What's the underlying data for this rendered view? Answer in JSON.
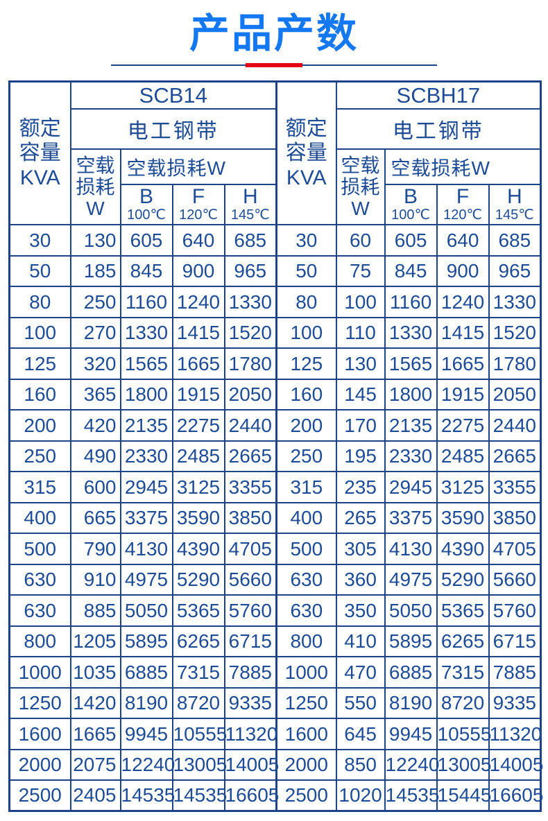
{
  "page": {
    "title": "产品产数"
  },
  "colors": {
    "title_blue": "#1478f2",
    "navy_text": "#1d4b96",
    "navy_border": "#1e4287",
    "accent_red": "#e60014"
  },
  "table": {
    "groups": [
      {
        "model": "SCB14",
        "kva_label": "额定\n容量\nKVA",
        "steel_label": "电工钢带",
        "noload_label": "空载\n损耗\nW",
        "loss_label": "空载损耗W"
      },
      {
        "model": "SCBH17",
        "kva_label": "额定\n容量\nKVA",
        "steel_label": "电工钢带",
        "noload_label": "空载\n损耗\nW",
        "loss_label": "空载损耗W"
      }
    ],
    "temp_cols": [
      {
        "letter": "B",
        "temp": "100℃"
      },
      {
        "letter": "F",
        "temp": "120℃"
      },
      {
        "letter": "H",
        "temp": "145℃"
      }
    ],
    "rows": [
      {
        "kva": "30",
        "scb14": [
          "130",
          "605",
          "640",
          "685"
        ],
        "scbh17": [
          "60",
          "605",
          "640",
          "685"
        ]
      },
      {
        "kva": "50",
        "scb14": [
          "185",
          "845",
          "900",
          "965"
        ],
        "scbh17": [
          "75",
          "845",
          "900",
          "965"
        ]
      },
      {
        "kva": "80",
        "scb14": [
          "250",
          "1160",
          "1240",
          "1330"
        ],
        "scbh17": [
          "100",
          "1160",
          "1240",
          "1330"
        ]
      },
      {
        "kva": "100",
        "scb14": [
          "270",
          "1330",
          "1415",
          "1520"
        ],
        "scbh17": [
          "110",
          "1330",
          "1415",
          "1520"
        ]
      },
      {
        "kva": "125",
        "scb14": [
          "320",
          "1565",
          "1665",
          "1780"
        ],
        "scbh17": [
          "130",
          "1565",
          "1665",
          "1780"
        ]
      },
      {
        "kva": "160",
        "scb14": [
          "365",
          "1800",
          "1915",
          "2050"
        ],
        "scbh17": [
          "145",
          "1800",
          "1915",
          "2050"
        ]
      },
      {
        "kva": "200",
        "scb14": [
          "420",
          "2135",
          "2275",
          "2440"
        ],
        "scbh17": [
          "170",
          "2135",
          "2275",
          "2440"
        ]
      },
      {
        "kva": "250",
        "scb14": [
          "490",
          "2330",
          "2485",
          "2665"
        ],
        "scbh17": [
          "195",
          "2330",
          "2485",
          "2665"
        ]
      },
      {
        "kva": "315",
        "scb14": [
          "600",
          "2945",
          "3125",
          "3355"
        ],
        "scbh17": [
          "235",
          "2945",
          "3125",
          "3355"
        ]
      },
      {
        "kva": "400",
        "scb14": [
          "665",
          "3375",
          "3590",
          "3850"
        ],
        "scbh17": [
          "265",
          "3375",
          "3590",
          "3850"
        ]
      },
      {
        "kva": "500",
        "scb14": [
          "790",
          "4130",
          "4390",
          "4705"
        ],
        "scbh17": [
          "305",
          "4130",
          "4390",
          "4705"
        ]
      },
      {
        "kva": "630",
        "scb14": [
          "910",
          "4975",
          "5290",
          "5660"
        ],
        "scbh17": [
          "360",
          "4975",
          "5290",
          "5660"
        ]
      },
      {
        "kva": "630",
        "scb14": [
          "885",
          "5050",
          "5365",
          "5760"
        ],
        "scbh17": [
          "350",
          "5050",
          "5365",
          "5760"
        ]
      },
      {
        "kva": "800",
        "scb14": [
          "1205",
          "5895",
          "6265",
          "6715"
        ],
        "scbh17": [
          "410",
          "5895",
          "6265",
          "6715"
        ]
      },
      {
        "kva": "1000",
        "scb14": [
          "1035",
          "6885",
          "7315",
          "7885"
        ],
        "scbh17": [
          "470",
          "6885",
          "7315",
          "7885"
        ]
      },
      {
        "kva": "1250",
        "scb14": [
          "1420",
          "8190",
          "8720",
          "9335"
        ],
        "scbh17": [
          "550",
          "8190",
          "8720",
          "9335"
        ]
      },
      {
        "kva": "1600",
        "scb14": [
          "1665",
          "9945",
          "10555",
          "11320"
        ],
        "scbh17": [
          "645",
          "9945",
          "10555",
          "11320"
        ]
      },
      {
        "kva": "2000",
        "scb14": [
          "2075",
          "12240",
          "13005",
          "14005"
        ],
        "scbh17": [
          "850",
          "12240",
          "13005",
          "14005"
        ]
      },
      {
        "kva": "2500",
        "scb14": [
          "2405",
          "14535",
          "14535",
          "16605"
        ],
        "scbh17": [
          "1020",
          "14535",
          "15445",
          "16605"
        ]
      }
    ]
  }
}
